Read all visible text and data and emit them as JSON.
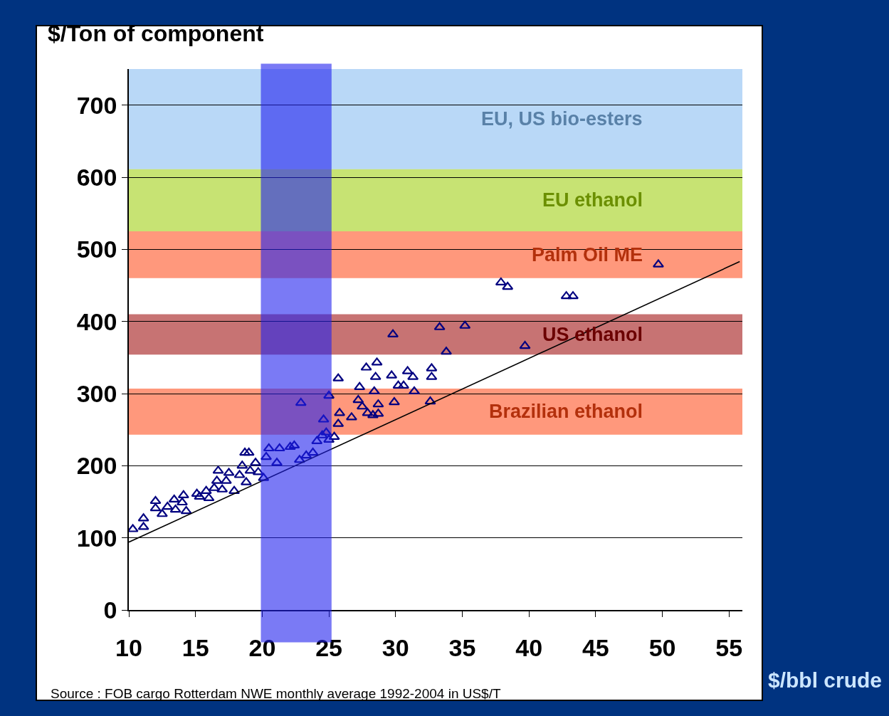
{
  "chart_data": {
    "type": "scatter",
    "xlabel": "$/bbl crude",
    "ylabel": "$/Ton of component",
    "xlim": [
      10,
      56
    ],
    "xticks": [
      10,
      15,
      20,
      25,
      30,
      35,
      40,
      45,
      50,
      55
    ],
    "ylim": [
      0,
      750
    ],
    "yticks": [
      0,
      100,
      200,
      300,
      400,
      500,
      600,
      700
    ],
    "grid": "y",
    "marker": "triangle",
    "series": [
      {
        "color": "#000080",
        "x": [
          10.3,
          11.1,
          11.1,
          12.0,
          12.0,
          12.5,
          12.9,
          13.4,
          13.5,
          14.0,
          14.1,
          14.3,
          15.1,
          15.3,
          15.8,
          16.0,
          16.4,
          16.6,
          16.7,
          17.0,
          17.3,
          17.5,
          17.9,
          18.3,
          18.5,
          18.7,
          18.8,
          19.0,
          19.1,
          19.5,
          19.7,
          20.1,
          20.3,
          20.5,
          21.1,
          21.3,
          22.1,
          22.4,
          22.8,
          22.9,
          23.3,
          23.8,
          24.1,
          24.5,
          24.6,
          24.8,
          25.0,
          25.0,
          25.4,
          25.7,
          25.7,
          25.8,
          26.7,
          27.2,
          27.3,
          27.5,
          27.8,
          27.9,
          28.3,
          28.4,
          28.5,
          28.6,
          28.7,
          28.7,
          29.7,
          29.8,
          29.9,
          30.2,
          30.6,
          30.9,
          31.3,
          31.4,
          32.6,
          32.7,
          32.7,
          33.3,
          33.8,
          35.2,
          37.9,
          38.4,
          39.7,
          42.8,
          43.3,
          49.7
        ],
        "values": [
          112,
          127,
          115,
          151,
          141,
          133,
          143,
          153,
          139,
          149,
          159,
          137,
          161,
          157,
          165,
          155,
          169,
          179,
          193,
          167,
          179,
          190,
          165,
          187,
          200,
          218,
          177,
          218,
          193,
          204,
          191,
          183,
          212,
          224,
          204,
          224,
          226,
          228,
          208,
          287,
          214,
          218,
          234,
          242,
          264,
          246,
          297,
          236,
          240,
          321,
          258,
          273,
          267,
          291,
          309,
          282,
          336,
          273,
          270,
          303,
          323,
          343,
          285,
          272,
          325,
          382,
          288,
          311,
          311,
          331,
          323,
          303,
          289,
          335,
          323,
          392,
          358,
          394,
          454,
          448,
          366,
          435,
          435,
          479
        ]
      },
      {
        "type": "line",
        "color": "#000000",
        "line_style": "solid",
        "marker": "none",
        "x": [
          10,
          55.8
        ],
        "values": [
          94,
          483
        ]
      }
    ],
    "bands": [
      {
        "axis": "y",
        "from": 611,
        "to": 750,
        "color": "#7fb8f0",
        "label": "EU, US bio-esters"
      },
      {
        "axis": "y",
        "from": 525,
        "to": 611,
        "color": "#99cc00",
        "label": "EU ethanol"
      },
      {
        "axis": "y",
        "from": 460,
        "to": 525,
        "color": "#ff4411",
        "label": "Palm Oil ME"
      },
      {
        "axis": "y",
        "from": 354,
        "to": 410,
        "color": "#990000",
        "label": "US ethanol"
      },
      {
        "axis": "y",
        "from": 243,
        "to": 307,
        "color": "#ff4411",
        "label": "Brazilian ethanol"
      },
      {
        "axis": "x",
        "from": 19.9,
        "to": 25.2,
        "color": "#2222ee"
      }
    ],
    "annotations": [
      "Source : FOB cargo Rotterdam NWE monthly average 1992-2004 in US$/T"
    ]
  }
}
